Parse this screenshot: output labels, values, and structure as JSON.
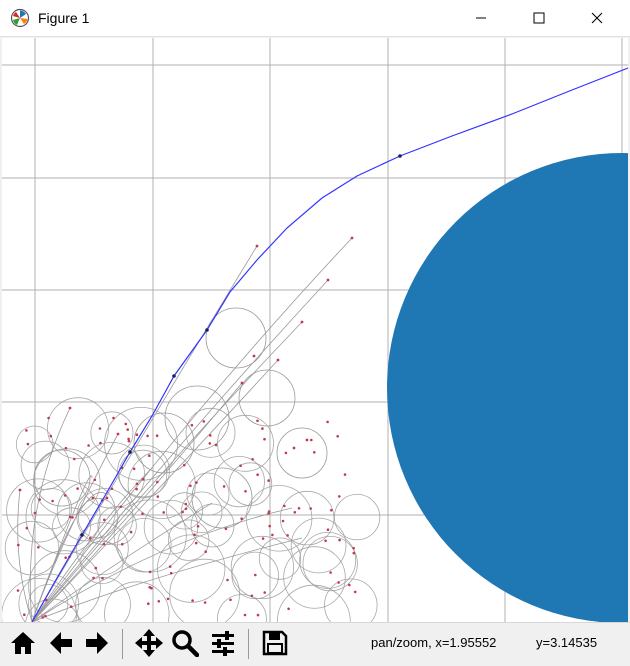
{
  "window": {
    "title": "Figure 1",
    "controls": [
      "minimize",
      "maximize",
      "close"
    ]
  },
  "toolbar": {
    "buttons": [
      {
        "name": "home",
        "icon": "home-icon"
      },
      {
        "name": "back",
        "icon": "arrow-left-icon"
      },
      {
        "name": "forward",
        "icon": "arrow-right-icon"
      },
      {
        "name": "pan",
        "icon": "pan-arrows-icon"
      },
      {
        "name": "zoom",
        "icon": "magnifier-icon"
      },
      {
        "name": "subplots",
        "icon": "sliders-icon"
      },
      {
        "name": "save",
        "icon": "floppy-disk-icon"
      }
    ]
  },
  "status": {
    "mode_and_x": "pan/zoom, x=1.95552",
    "y": "y=3.14535"
  },
  "plot": {
    "grid": true,
    "obstacle_color": "#1f77b4",
    "path_color": "#3333ff",
    "tree_color": "#999999",
    "node_color": "#c03a50"
  }
}
